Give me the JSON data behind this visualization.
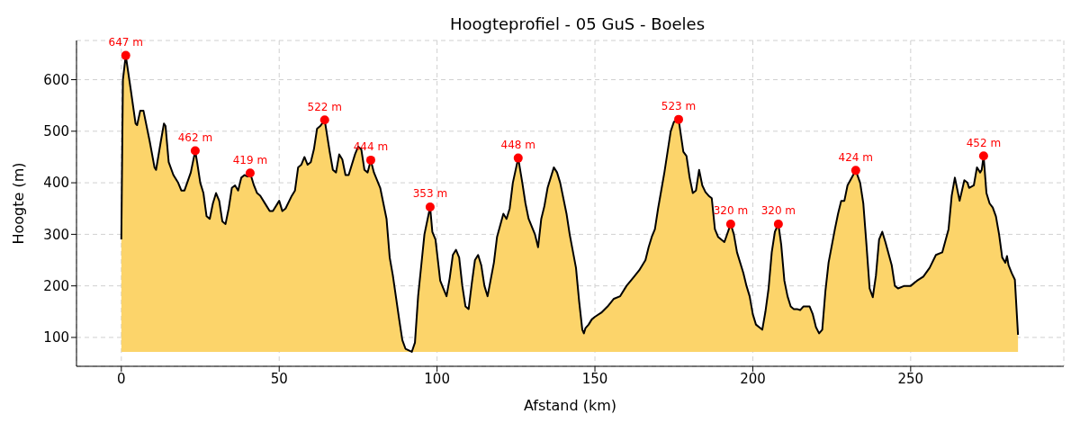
{
  "chart_data": {
    "type": "area",
    "title": "Hoogteprofiel - 05 GuS - Boeles",
    "xlabel": "Afstand (km)",
    "ylabel": "Hoogte (m)",
    "xlim": [
      -14.2,
      298.5
    ],
    "ylim": [
      44,
      676
    ],
    "xticks": [
      0,
      50,
      100,
      150,
      200,
      250
    ],
    "yticks": [
      100,
      200,
      300,
      400,
      500,
      600
    ],
    "grid": true,
    "series": [
      {
        "color": "#fcd46a",
        "x": [
          0,
          0.5,
          1.4,
          3,
          4.5,
          5,
          6,
          7,
          9,
          10.5,
          11,
          12.5,
          13.5,
          14,
          15,
          16.5,
          18,
          19,
          20,
          22,
          23.4,
          24,
          25,
          26,
          27,
          28,
          29,
          30,
          31,
          32,
          33,
          34,
          35,
          36,
          37,
          38,
          39,
          40,
          40.8,
          42,
          43,
          44,
          46,
          47,
          48,
          50,
          51,
          52,
          54,
          55,
          56,
          57,
          58,
          59,
          60,
          61,
          62,
          63,
          64.4,
          66,
          67,
          68,
          69,
          70,
          71,
          72,
          74,
          75,
          76,
          77,
          78,
          79,
          80,
          82,
          84,
          85,
          86,
          88,
          89,
          90,
          92,
          93,
          94,
          95,
          96,
          97.8,
          98.5,
          99.5,
          101,
          102,
          103,
          104,
          105,
          106,
          107,
          108,
          109,
          110,
          111,
          112,
          113,
          114,
          115,
          116,
          118,
          119,
          121,
          122,
          123,
          124,
          125.7,
          127,
          128,
          129,
          131,
          132,
          133,
          134,
          135,
          137,
          138,
          139,
          141,
          142,
          144,
          145,
          146,
          146.5,
          147,
          148,
          149,
          150,
          152,
          154,
          156,
          158,
          160,
          162,
          164,
          166,
          167,
          168,
          169,
          170,
          172,
          174,
          175,
          176.5,
          178,
          179,
          180,
          181,
          182,
          183,
          184,
          185,
          186,
          187,
          188,
          189,
          191,
          193,
          194,
          195,
          197,
          198,
          199,
          200,
          201,
          202,
          203,
          204,
          205,
          206,
          207,
          208.1,
          209,
          210,
          211,
          212,
          213,
          214,
          215,
          216,
          218,
          219,
          220,
          221,
          222,
          223,
          224,
          226,
          227,
          228,
          229,
          230,
          232.6,
          234,
          235,
          236,
          237,
          238,
          239,
          240,
          241,
          242,
          244,
          245,
          246,
          248,
          250,
          252,
          254,
          256,
          258,
          260,
          262,
          263,
          264,
          265,
          265.5,
          267,
          268,
          268.5,
          270,
          271,
          272,
          272.5,
          273.1,
          274,
          275,
          276,
          277,
          278,
          279,
          280,
          280.5,
          281,
          282,
          283,
          284
        ],
        "values": [
          290,
          600,
          647,
          580,
          515,
          512,
          540,
          540,
          480,
          430,
          425,
          480,
          515,
          510,
          440,
          415,
          400,
          385,
          385,
          420,
          462,
          440,
          400,
          380,
          335,
          330,
          360,
          380,
          365,
          325,
          320,
          350,
          390,
          395,
          385,
          410,
          415,
          412,
          419,
          395,
          380,
          375,
          355,
          345,
          345,
          365,
          345,
          350,
          375,
          385,
          430,
          435,
          450,
          435,
          440,
          465,
          505,
          510,
          522,
          460,
          425,
          420,
          455,
          445,
          415,
          415,
          455,
          470,
          465,
          425,
          420,
          444,
          420,
          390,
          330,
          255,
          220,
          135,
          95,
          78,
          72,
          90,
          180,
          240,
          300,
          353,
          305,
          290,
          210,
          195,
          180,
          215,
          260,
          270,
          255,
          200,
          160,
          155,
          205,
          250,
          260,
          240,
          200,
          180,
          245,
          295,
          340,
          330,
          350,
          400,
          448,
          400,
          360,
          330,
          300,
          275,
          330,
          355,
          390,
          430,
          420,
          400,
          340,
          300,
          235,
          170,
          115,
          108,
          118,
          125,
          135,
          140,
          148,
          160,
          175,
          180,
          200,
          215,
          230,
          250,
          275,
          295,
          310,
          350,
          420,
          500,
          518,
          523,
          460,
          452,
          410,
          380,
          385,
          425,
          395,
          382,
          375,
          370,
          310,
          295,
          285,
          320,
          300,
          265,
          225,
          200,
          180,
          145,
          125,
          120,
          115,
          150,
          195,
          265,
          305,
          320,
          280,
          210,
          180,
          160,
          155,
          155,
          153,
          160,
          160,
          145,
          120,
          108,
          115,
          190,
          245,
          310,
          340,
          365,
          365,
          395,
          424,
          400,
          360,
          280,
          195,
          178,
          220,
          290,
          305,
          285,
          240,
          200,
          195,
          200,
          200,
          210,
          218,
          235,
          260,
          265,
          310,
          375,
          410,
          380,
          365,
          405,
          400,
          390,
          395,
          430,
          420,
          425,
          452,
          380,
          360,
          352,
          335,
          300,
          255,
          245,
          258,
          240,
          225,
          212,
          105
        ]
      },
      {
        "type": "scatter",
        "color": "#ff0000",
        "marker": "circle",
        "x": [
          1.4,
          23.4,
          40.8,
          64.4,
          79,
          97.8,
          125.7,
          176.5,
          193,
          208.1,
          232.6,
          273.1
        ],
        "values": [
          647,
          462,
          419,
          522,
          444,
          353,
          448,
          523,
          320,
          320,
          424,
          452
        ],
        "value_labels": [
          "647 m",
          "462 m",
          "419 m",
          "522 m",
          "444 m",
          "353 m",
          "448 m",
          "523 m",
          "320 m",
          "320 m",
          "424 m",
          "452 m"
        ]
      }
    ]
  }
}
